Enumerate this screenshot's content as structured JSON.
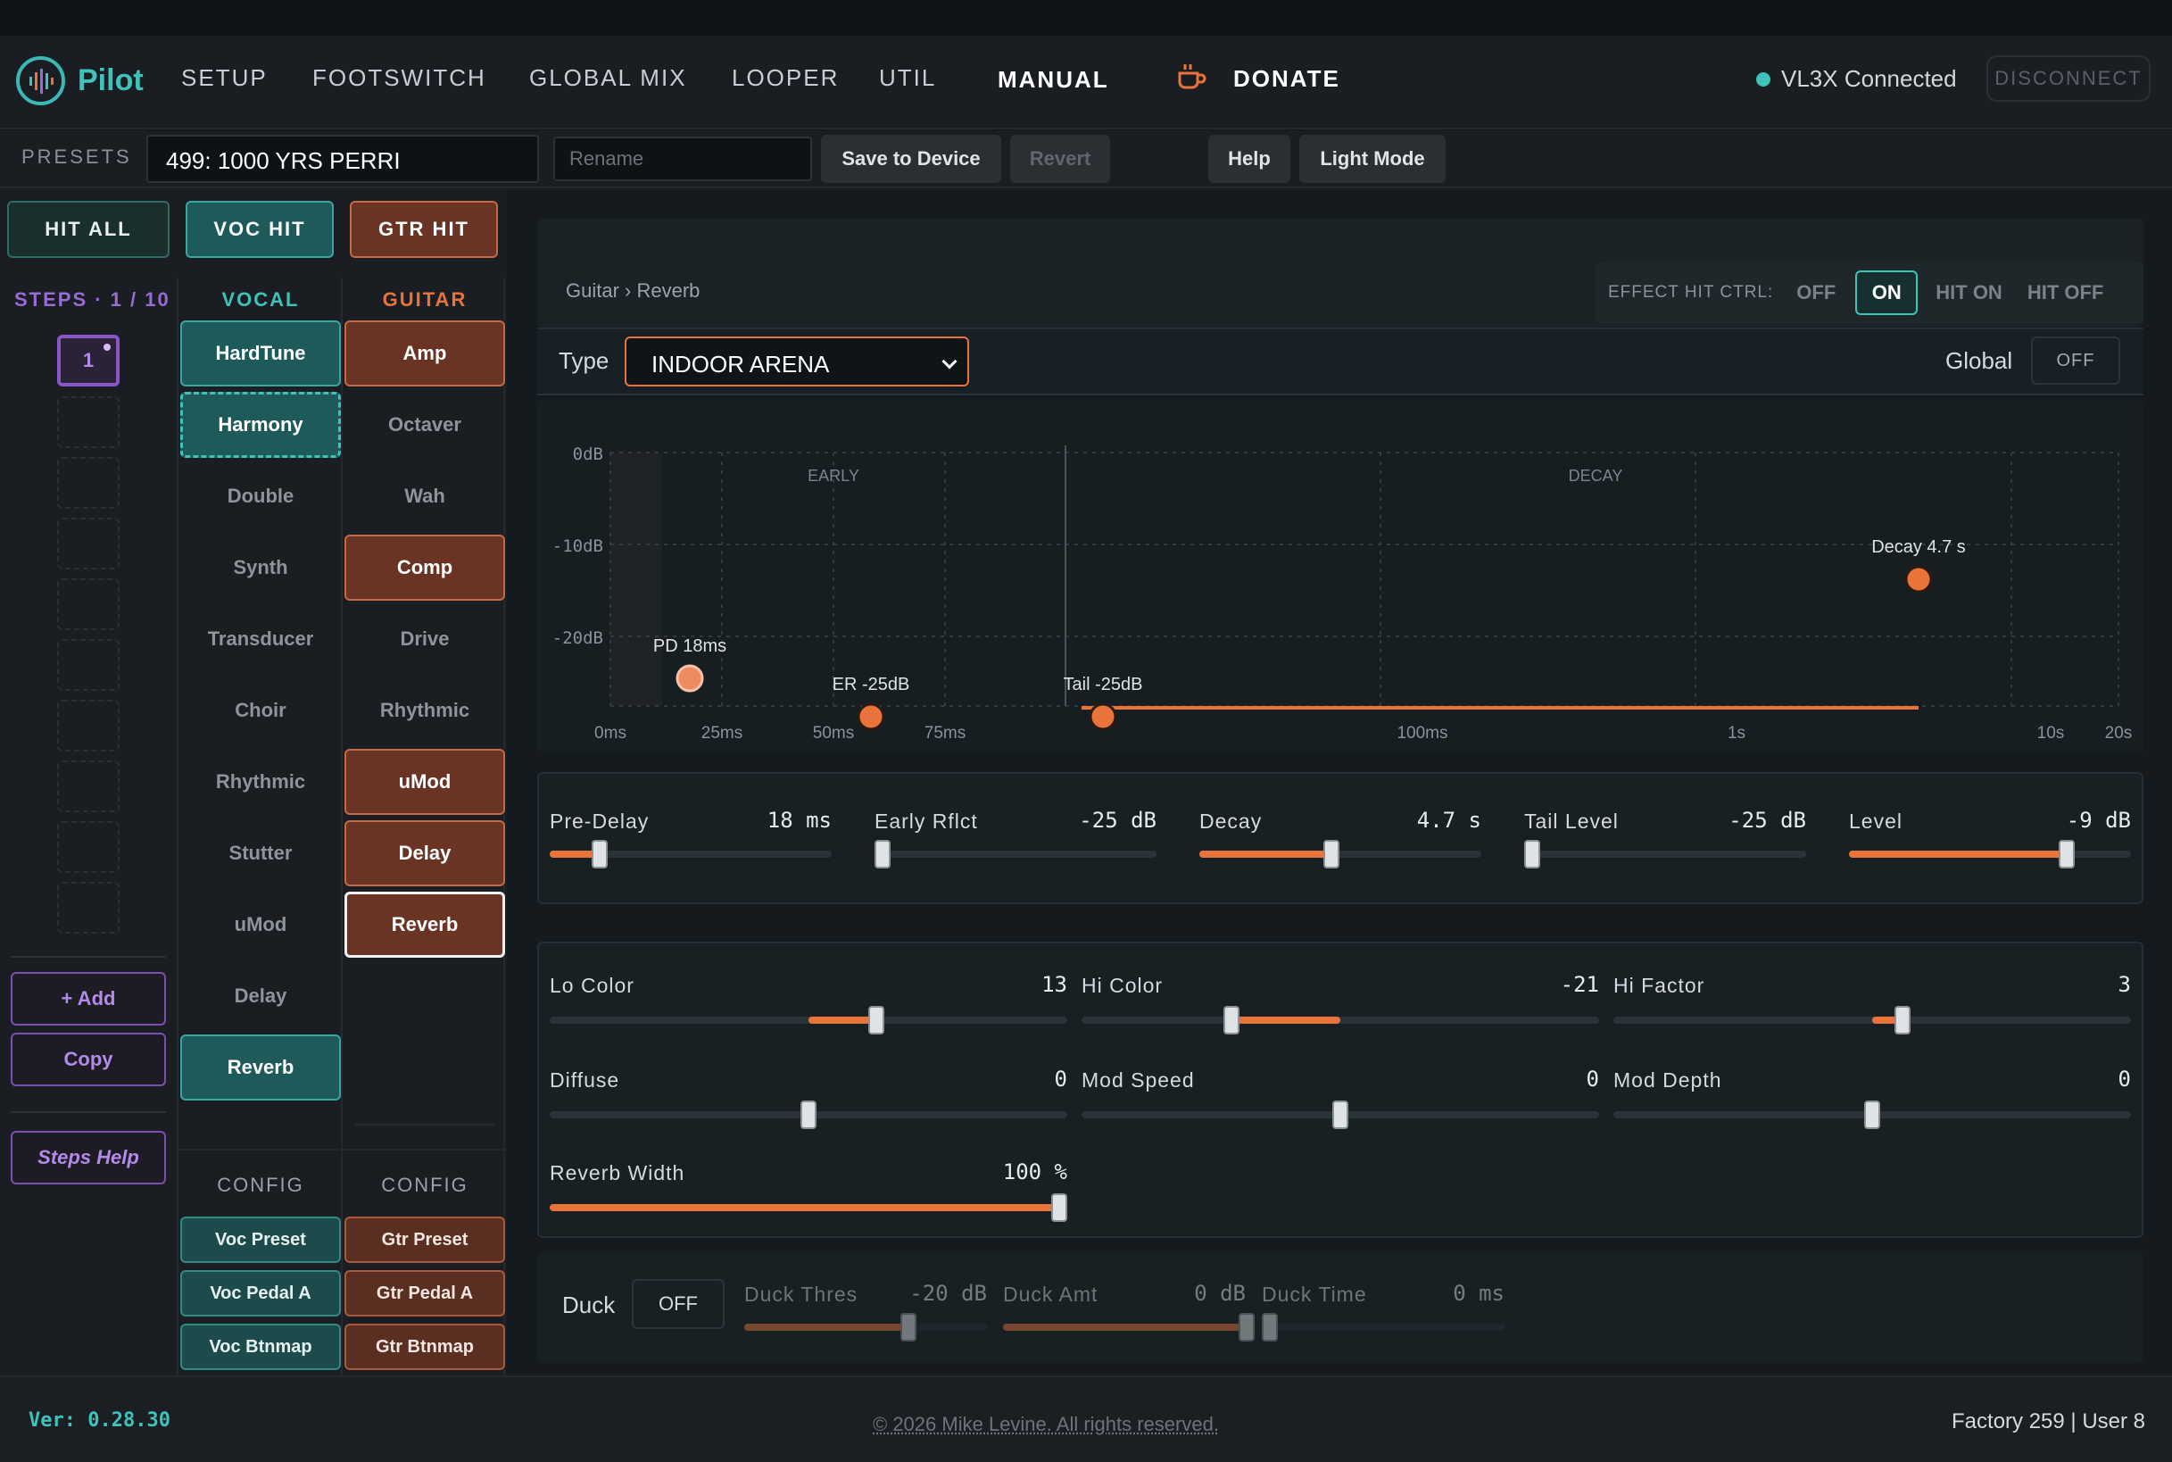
{
  "app": {
    "name": "Pilot"
  },
  "nav": {
    "setup": "SETUP",
    "footswitch": "FOOTSWITCH",
    "global_mix": "GLOBAL MIX",
    "looper": "LOOPER",
    "util": "UTIL",
    "manual": "MANUAL",
    "donate": "DONATE",
    "connection_status": "VL3X Connected",
    "disconnect": "DISCONNECT"
  },
  "presetbar": {
    "label": "PRESETS",
    "preset_name": "499: 1000 YRS PERRI",
    "rename_placeholder": "Rename",
    "save": "Save to Device",
    "revert": "Revert",
    "help": "Help",
    "light_mode": "Light Mode"
  },
  "hit": {
    "all": "HIT ALL",
    "voc": "VOC HIT",
    "gtr": "GTR HIT"
  },
  "steps": {
    "label": "STEPS · 1 / 10",
    "current": "1",
    "add": "+ Add",
    "copy": "Copy",
    "help": "Steps Help"
  },
  "vocal": {
    "header": "VOCAL",
    "items": [
      "HardTune",
      "Harmony",
      "Double",
      "Synth",
      "Transducer",
      "Choir",
      "Rhythmic",
      "Stutter",
      "uMod",
      "Delay",
      "Reverb"
    ],
    "config_header": "CONFIG",
    "config": [
      "Voc Preset",
      "Voc Pedal A",
      "Voc Btnmap"
    ]
  },
  "guitar": {
    "header": "GUITAR",
    "items": [
      "Amp",
      "Octaver",
      "Wah",
      "Comp",
      "Drive",
      "Rhythmic",
      "uMod",
      "Delay",
      "Reverb"
    ],
    "config_header": "CONFIG",
    "config": [
      "Gtr Preset",
      "Gtr Pedal A",
      "Gtr Btnmap"
    ]
  },
  "effect": {
    "breadcrumb": "Guitar › Reverb",
    "hit_ctrl_label": "EFFECT HIT CTRL:",
    "hit_ctrl_options": [
      "OFF",
      "ON",
      "HIT ON",
      "HIT OFF"
    ],
    "hit_ctrl_selected": "ON",
    "type_label": "Type",
    "type_value": "INDOOR ARENA",
    "global_label": "Global",
    "global_value": "OFF"
  },
  "graph": {
    "y_ticks": [
      "0dB",
      "-10dB",
      "-20dB"
    ],
    "x_ticks": [
      "0ms",
      "25ms",
      "50ms",
      "75ms",
      "100ms",
      "1s",
      "10s",
      "20s"
    ],
    "sections": [
      "EARLY",
      "DECAY"
    ],
    "points": [
      {
        "label": "PD 18ms"
      },
      {
        "label": "ER -25dB"
      },
      {
        "label": "Tail -25dB"
      },
      {
        "label": "Decay 4.7 s"
      }
    ]
  },
  "params_row1": [
    {
      "label": "Pre-Delay",
      "value": "18 ms",
      "level": 0.17
    },
    {
      "label": "Early Rflct",
      "value": "-25 dB",
      "level": 0.0
    },
    {
      "label": "Decay",
      "value": "4.7 s",
      "level": 0.47
    },
    {
      "label": "Tail Level",
      "value": "-25 dB",
      "level": 0.0
    },
    {
      "label": "Level",
      "value": "-9 dB",
      "level": 0.77
    }
  ],
  "params_row2": [
    {
      "label": "Lo Color",
      "value": "13"
    },
    {
      "label": "Hi Color",
      "value": "-21"
    },
    {
      "label": "Hi Factor",
      "value": "3"
    },
    {
      "label": "Diffuse",
      "value": "0"
    },
    {
      "label": "Mod Speed",
      "value": "0"
    },
    {
      "label": "Mod Depth",
      "value": "0"
    },
    {
      "label": "Reverb Width",
      "value": "100 %"
    }
  ],
  "duck": {
    "label": "Duck",
    "toggle": "OFF",
    "params": [
      {
        "label": "Duck Thres",
        "value": "-20 dB"
      },
      {
        "label": "Duck Amt",
        "value": "0 dB"
      },
      {
        "label": "Duck Time",
        "value": "0 ms"
      }
    ]
  },
  "footer": {
    "version": "Ver: 0.28.30",
    "copyright": "© 2026 Mike Levine. All rights reserved.",
    "counts": "Factory 259 | User 8"
  },
  "colors": {
    "accent_teal": "#3ec2b9",
    "accent_orange": "#e8743b",
    "accent_purple": "#8a55c8"
  }
}
